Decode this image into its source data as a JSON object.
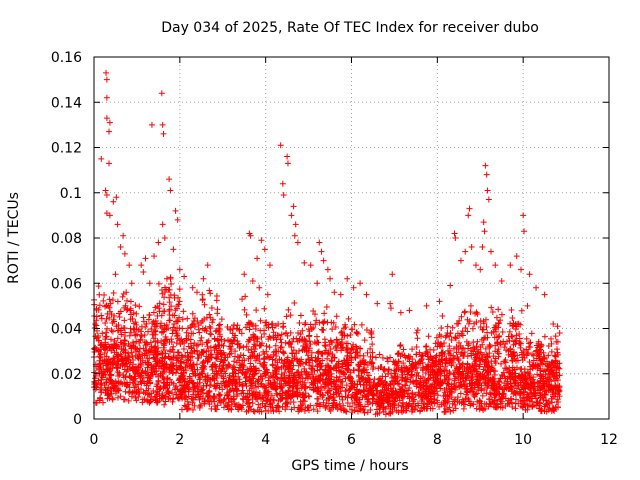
{
  "chart_data": {
    "type": "scatter",
    "title": "Day 034 of 2025, Rate Of TEC Index for receiver dubo",
    "xlabel": "GPS time / hours",
    "ylabel": "ROTI / TECUs",
    "xlim": [
      0,
      12
    ],
    "ylim": [
      0,
      0.16
    ],
    "xticks": [
      0,
      2,
      4,
      6,
      8,
      10,
      12
    ],
    "yticks": [
      0,
      0.02,
      0.04,
      0.06,
      0.08,
      0.1,
      0.12,
      0.14,
      0.16
    ],
    "xtick_labels": [
      "0",
      "2",
      "4",
      "6",
      "8",
      "10",
      "12"
    ],
    "ytick_labels": [
      "0",
      "0.02",
      "0.04",
      "0.06",
      "0.08",
      "0.1",
      "0.12",
      "0.14",
      "0.16"
    ],
    "grid": true,
    "marker": "+",
    "color": "#ff0000",
    "series": [
      {
        "values": [
          [
            0.28,
            0.153
          ],
          [
            0.3,
            0.15
          ],
          [
            0.3,
            0.142
          ],
          [
            0.3,
            0.133
          ],
          [
            0.37,
            0.131
          ],
          [
            0.35,
            0.127
          ],
          [
            0.17,
            0.115
          ],
          [
            0.35,
            0.113
          ],
          [
            0.27,
            0.101
          ],
          [
            0.3,
            0.099
          ],
          [
            0.3,
            0.091
          ],
          [
            0.37,
            0.09
          ],
          [
            0.52,
            0.098
          ],
          [
            0.45,
            0.096
          ],
          [
            0.55,
            0.086
          ],
          [
            0.68,
            0.081
          ],
          [
            0.62,
            0.076
          ],
          [
            0.72,
            0.073
          ],
          [
            0.82,
            0.068
          ],
          [
            0.5,
            0.064
          ],
          [
            0.88,
            0.06
          ],
          [
            0.75,
            0.056
          ],
          [
            1.58,
            0.144
          ],
          [
            1.6,
            0.13
          ],
          [
            1.62,
            0.126
          ],
          [
            1.35,
            0.13
          ],
          [
            1.75,
            0.106
          ],
          [
            1.78,
            0.101
          ],
          [
            1.9,
            0.092
          ],
          [
            1.95,
            0.088
          ],
          [
            1.6,
            0.086
          ],
          [
            1.65,
            0.08
          ],
          [
            1.5,
            0.078
          ],
          [
            1.85,
            0.075
          ],
          [
            1.4,
            0.072
          ],
          [
            1.2,
            0.071
          ],
          [
            1.1,
            0.068
          ],
          [
            1.15,
            0.065
          ],
          [
            1.3,
            0.06
          ],
          [
            1.7,
            0.062
          ],
          [
            2.0,
            0.066
          ],
          [
            2.1,
            0.063
          ],
          [
            2.3,
            0.058
          ],
          [
            2.55,
            0.062
          ],
          [
            2.65,
            0.068
          ],
          [
            2.4,
            0.056
          ],
          [
            4.35,
            0.121
          ],
          [
            4.5,
            0.116
          ],
          [
            4.52,
            0.113
          ],
          [
            4.4,
            0.104
          ],
          [
            4.42,
            0.099
          ],
          [
            4.65,
            0.094
          ],
          [
            4.6,
            0.09
          ],
          [
            4.7,
            0.086
          ],
          [
            4.68,
            0.081
          ],
          [
            4.75,
            0.078
          ],
          [
            3.62,
            0.082
          ],
          [
            3.65,
            0.081
          ],
          [
            3.9,
            0.079
          ],
          [
            3.98,
            0.075
          ],
          [
            3.8,
            0.071
          ],
          [
            4.1,
            0.068
          ],
          [
            3.5,
            0.064
          ],
          [
            3.7,
            0.061
          ],
          [
            3.85,
            0.058
          ],
          [
            4.05,
            0.055
          ],
          [
            3.45,
            0.053
          ],
          [
            4.9,
            0.069
          ],
          [
            5.05,
            0.068
          ],
          [
            5.25,
            0.078
          ],
          [
            5.3,
            0.074
          ],
          [
            5.35,
            0.07
          ],
          [
            5.45,
            0.066
          ],
          [
            5.5,
            0.062
          ],
          [
            5.2,
            0.06
          ],
          [
            5.6,
            0.056
          ],
          [
            5.75,
            0.055
          ],
          [
            5.9,
            0.062
          ],
          [
            6.05,
            0.058
          ],
          [
            6.2,
            0.06
          ],
          [
            6.35,
            0.055
          ],
          [
            6.6,
            0.051
          ],
          [
            6.95,
            0.064
          ],
          [
            6.9,
            0.051
          ],
          [
            6.92,
            0.049
          ],
          [
            7.15,
            0.047
          ],
          [
            7.35,
            0.048
          ],
          [
            7.75,
            0.05
          ],
          [
            8.05,
            0.052
          ],
          [
            8.3,
            0.059
          ],
          [
            8.4,
            0.082
          ],
          [
            8.42,
            0.08
          ],
          [
            8.55,
            0.07
          ],
          [
            8.65,
            0.074
          ],
          [
            8.72,
            0.09
          ],
          [
            8.75,
            0.093
          ],
          [
            8.8,
            0.076
          ],
          [
            8.9,
            0.068
          ],
          [
            9.0,
            0.066
          ],
          [
            9.08,
            0.087
          ],
          [
            9.12,
            0.112
          ],
          [
            9.15,
            0.108
          ],
          [
            9.17,
            0.101
          ],
          [
            9.2,
            0.097
          ],
          [
            9.1,
            0.083
          ],
          [
            9.05,
            0.076
          ],
          [
            9.25,
            0.074
          ],
          [
            9.35,
            0.068
          ],
          [
            9.5,
            0.061
          ],
          [
            9.7,
            0.068
          ],
          [
            9.85,
            0.072
          ],
          [
            10.0,
            0.09
          ],
          [
            10.02,
            0.083
          ],
          [
            9.95,
            0.066
          ],
          [
            10.15,
            0.064
          ],
          [
            10.3,
            0.058
          ],
          [
            10.5,
            0.055
          ],
          [
            10.1,
            0.05
          ],
          [
            10.7,
            0.042
          ],
          [
            10.8,
            0.041
          ],
          [
            10.85,
            0.038
          ]
        ],
        "bands": [
          {
            "x0": 0.0,
            "x1": 0.4,
            "lo": 0.007,
            "hi": 0.06,
            "n": 170
          },
          {
            "x0": 0.4,
            "x1": 1.0,
            "lo": 0.008,
            "hi": 0.058,
            "n": 230
          },
          {
            "x0": 1.0,
            "x1": 1.5,
            "lo": 0.007,
            "hi": 0.055,
            "n": 190
          },
          {
            "x0": 1.5,
            "x1": 2.0,
            "lo": 0.006,
            "hi": 0.065,
            "n": 210
          },
          {
            "x0": 2.0,
            "x1": 2.5,
            "lo": 0.004,
            "hi": 0.05,
            "n": 190
          },
          {
            "x0": 2.5,
            "x1": 3.0,
            "lo": 0.004,
            "hi": 0.06,
            "n": 190
          },
          {
            "x0": 3.0,
            "x1": 3.5,
            "lo": 0.004,
            "hi": 0.045,
            "n": 170
          },
          {
            "x0": 3.5,
            "x1": 4.0,
            "lo": 0.003,
            "hi": 0.055,
            "n": 180
          },
          {
            "x0": 4.0,
            "x1": 4.5,
            "lo": 0.003,
            "hi": 0.048,
            "n": 180
          },
          {
            "x0": 4.5,
            "x1": 5.0,
            "lo": 0.003,
            "hi": 0.052,
            "n": 180
          },
          {
            "x0": 5.0,
            "x1": 5.5,
            "lo": 0.003,
            "hi": 0.05,
            "n": 180
          },
          {
            "x0": 5.5,
            "x1": 6.0,
            "lo": 0.003,
            "hi": 0.048,
            "n": 180
          },
          {
            "x0": 6.0,
            "x1": 6.5,
            "lo": 0.002,
            "hi": 0.045,
            "n": 170
          },
          {
            "x0": 6.5,
            "x1": 7.0,
            "lo": 0.002,
            "hi": 0.03,
            "n": 150
          },
          {
            "x0": 7.0,
            "x1": 7.5,
            "lo": 0.003,
            "hi": 0.035,
            "n": 160
          },
          {
            "x0": 7.5,
            "x1": 8.0,
            "lo": 0.003,
            "hi": 0.042,
            "n": 170
          },
          {
            "x0": 8.0,
            "x1": 8.5,
            "lo": 0.003,
            "hi": 0.048,
            "n": 180
          },
          {
            "x0": 8.5,
            "x1": 9.0,
            "lo": 0.004,
            "hi": 0.052,
            "n": 180
          },
          {
            "x0": 9.0,
            "x1": 9.5,
            "lo": 0.004,
            "hi": 0.055,
            "n": 190
          },
          {
            "x0": 9.5,
            "x1": 10.0,
            "lo": 0.004,
            "hi": 0.052,
            "n": 180
          },
          {
            "x0": 10.0,
            "x1": 10.4,
            "lo": 0.004,
            "hi": 0.04,
            "n": 150
          },
          {
            "x0": 10.4,
            "x1": 10.85,
            "lo": 0.003,
            "hi": 0.038,
            "n": 180
          }
        ]
      }
    ]
  }
}
